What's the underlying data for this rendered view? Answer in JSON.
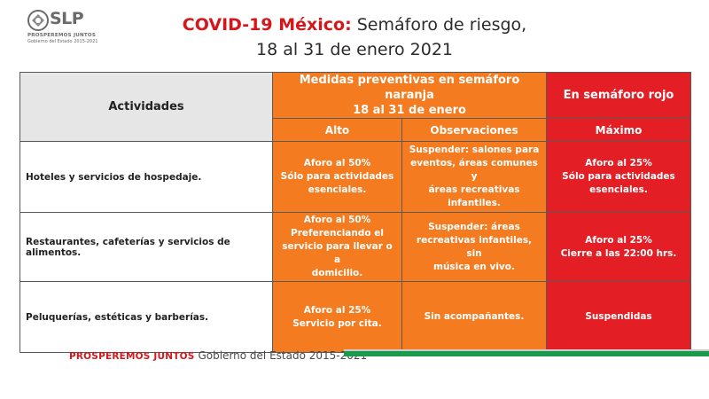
{
  "logo": {
    "text": "SLP",
    "sub1": "PROSPEREMOS JUNTOS",
    "sub2": "Gobierno del Estado 2015-2021"
  },
  "title": {
    "highlight": "COVID-19 México:",
    "rest": " Semáforo de riesgo,",
    "line2": "18 al 31 de enero 2021"
  },
  "table": {
    "header_activities": "Actividades",
    "header_orange_line1": "Medidas preventivas en semáforo naranja",
    "header_orange_line2": "18 al 31 de enero",
    "header_red": "En semáforo rojo",
    "sub_alto": "Alto",
    "sub_observaciones": "Observaciones",
    "sub_maximo": "Máximo",
    "rows": [
      {
        "actividad": "Hoteles y servicios de hospedaje.",
        "alto": [
          "Aforo al 50%",
          "Sólo para actividades",
          "esenciales."
        ],
        "observaciones": [
          "Suspender: salones para",
          "eventos, áreas comunes y",
          "áreas recreativas",
          "infantiles."
        ],
        "maximo": [
          "Aforo al 25%",
          "Sólo para actividades",
          "esenciales."
        ]
      },
      {
        "actividad": "Restaurantes, cafeterías y servicios de alimentos.",
        "alto": [
          "Aforo al 50%",
          "Preferenciando el",
          "servicio para llevar o a",
          "domicilio."
        ],
        "observaciones": [
          "Suspender: áreas",
          "recreativas infantiles, sin",
          "música en vivo."
        ],
        "maximo": [
          "Aforo al 25%",
          "Cierre a las 22:00 hrs."
        ]
      },
      {
        "actividad": "Peluquerías, estéticas y barberías.",
        "alto": [
          "Aforo al 25%",
          "Servicio por cita."
        ],
        "observaciones": [
          "Sin acompañantes."
        ],
        "maximo": [
          "Suspendidas"
        ]
      }
    ]
  },
  "footer": {
    "slogan": "PROSPEREMOS JUNTOS",
    "government": "Gobierno del Estado 2015-2021"
  },
  "colors": {
    "orange": "#f47b20",
    "red": "#e31e24",
    "green": "#1a9a4a",
    "gray_header": "#e6e6e6"
  }
}
